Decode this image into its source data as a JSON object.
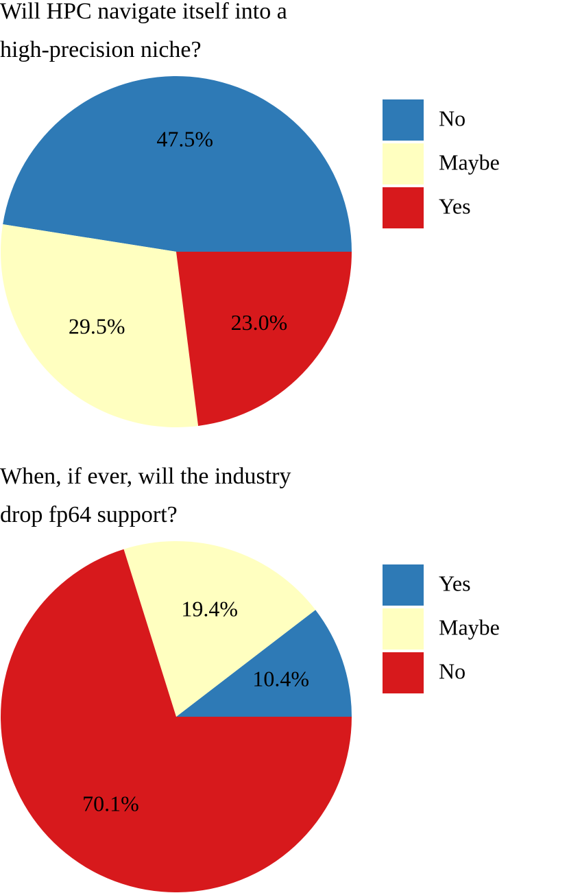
{
  "chart_data": [
    {
      "type": "pie",
      "title": "Will HPC navigate itself into a high-precision niche?",
      "categories": [
        "No",
        "Maybe",
        "Yes"
      ],
      "values": [
        47.5,
        29.5,
        23.0
      ],
      "value_labels": [
        "47.5%",
        "29.5%",
        "23.0%"
      ],
      "colors": [
        "#2e7ab6",
        "#ffffc0",
        "#d7191c"
      ],
      "legend": "right"
    },
    {
      "type": "pie",
      "title": "When, if ever, will the industry drop fp64 support?",
      "categories": [
        "Yes",
        "Maybe",
        "No"
      ],
      "values": [
        10.4,
        19.4,
        70.1
      ],
      "value_labels": [
        "10.4%",
        "19.4%",
        "70.1%"
      ],
      "colors": [
        "#2e7ab6",
        "#ffffc0",
        "#d7191c"
      ],
      "legend": "right"
    }
  ]
}
